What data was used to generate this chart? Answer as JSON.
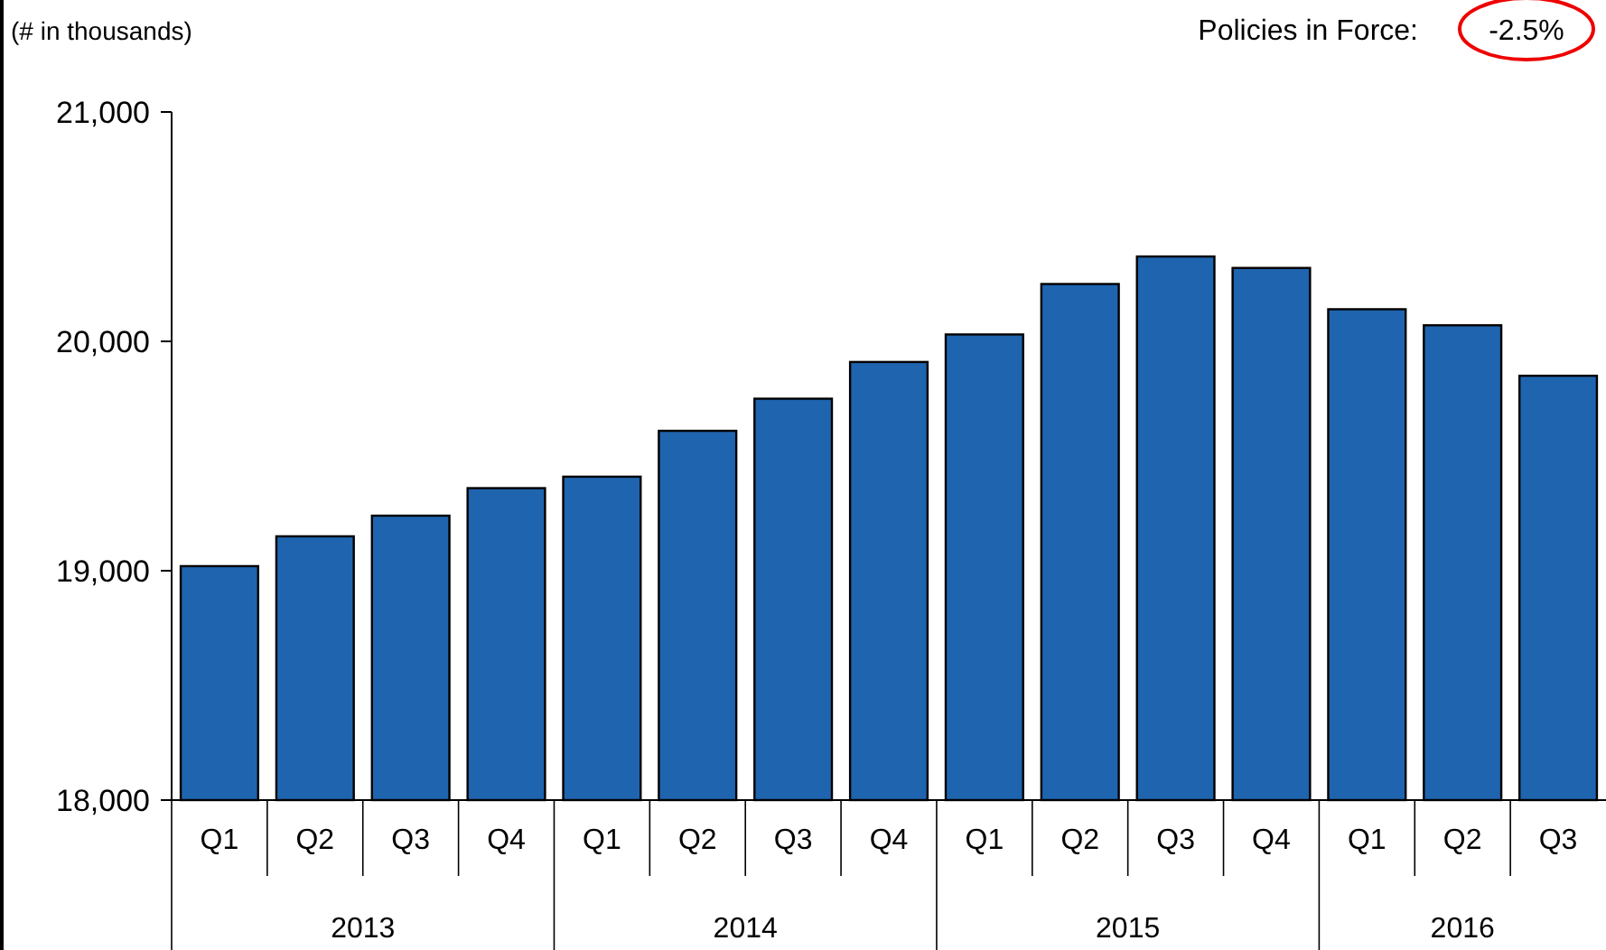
{
  "chart_data": {
    "type": "bar",
    "ylabel": "(# in thousands)",
    "categories": [
      "Q1",
      "Q2",
      "Q3",
      "Q4",
      "Q1",
      "Q2",
      "Q3",
      "Q4",
      "Q1",
      "Q2",
      "Q3",
      "Q4",
      "Q1",
      "Q2",
      "Q3"
    ],
    "values": [
      19020,
      19150,
      19240,
      19360,
      19410,
      19610,
      19750,
      19910,
      20030,
      20250,
      20370,
      20320,
      20140,
      20070,
      19850
    ],
    "color": "#1f64ae",
    "ylim": [
      18000,
      21000
    ],
    "yticks": [
      {
        "value": 18000,
        "label": "18,000"
      },
      {
        "value": 19000,
        "label": "19,000"
      },
      {
        "value": 20000,
        "label": "20,000"
      },
      {
        "value": 21000,
        "label": "21,000"
      }
    ],
    "grid": false,
    "annotations": [
      "Policies in Force:",
      "-2.5%",
      "2013",
      "2014",
      "2015",
      "2016"
    ]
  }
}
